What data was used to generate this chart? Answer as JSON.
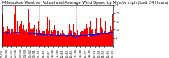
{
  "title": "Milwaukee Weather Actual and Average Wind Speed by Minute mph (Last 24 Hours)",
  "n_points": 1440,
  "y_max": 25,
  "y_min": 0,
  "bar_color": "#ff0000",
  "avg_color": "#0000ff",
  "background_color": "#ffffff",
  "plot_bg_color": "#ffffff",
  "grid_color": "#888888",
  "title_fontsize": 3.5,
  "tick_fontsize": 2.8,
  "num_vgrid": 2,
  "yticks": [
    5,
    10,
    15,
    20,
    25
  ],
  "n_xticks": 25,
  "seed": 42
}
